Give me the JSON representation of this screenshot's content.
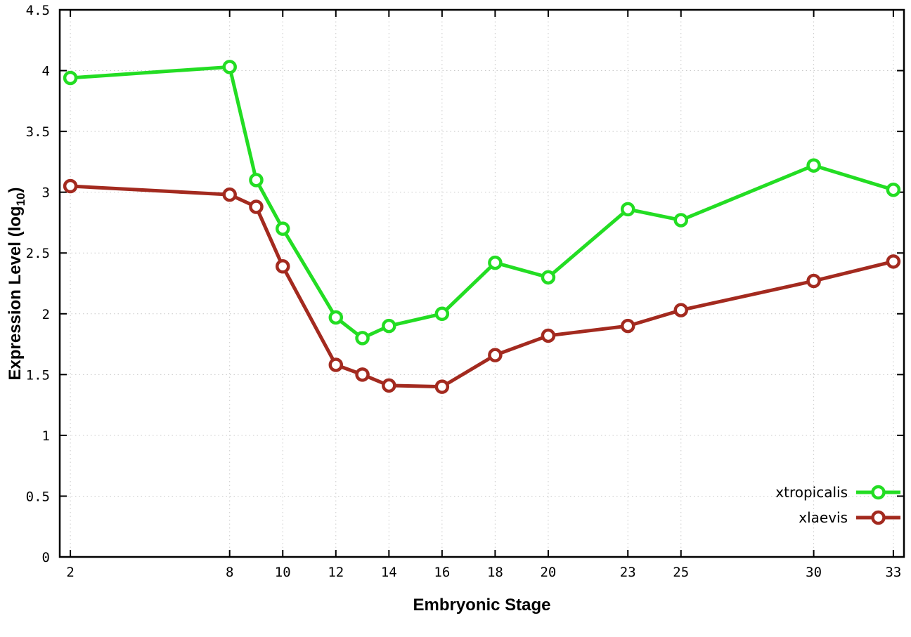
{
  "figure": {
    "background": "#ffffff",
    "border_color": "#000000",
    "grid_color": "#c9c9c9"
  },
  "chart_data": {
    "type": "line",
    "title": "",
    "xlabel": "Embryonic Stage",
    "ylabel": "Expression Level (log10)",
    "ylabel_parts": {
      "pre": "Expression Level (log",
      "sub": "10",
      "post": ")"
    },
    "xlim": [
      1.6,
      33.4
    ],
    "ylim": [
      0,
      4.5
    ],
    "grid": true,
    "legend_position": "bottom-right",
    "x_ticks": [
      2,
      8,
      10,
      12,
      14,
      16,
      18,
      20,
      23,
      25,
      30,
      33
    ],
    "x_tick_labels": [
      "2",
      "8",
      "10",
      "12",
      "14",
      "16",
      "18",
      "20",
      "23",
      "25",
      "30",
      "33"
    ],
    "y_ticks": [
      0,
      0.5,
      1,
      1.5,
      2,
      2.5,
      3,
      3.5,
      4,
      4.5
    ],
    "y_tick_labels": [
      "0",
      "0.5",
      "1",
      "1.5",
      "2",
      "2.5",
      "3",
      "3.5",
      "4",
      "4.5"
    ],
    "x": [
      2,
      8,
      9,
      10,
      12,
      13,
      14,
      16,
      18,
      20,
      23,
      25,
      30,
      33
    ],
    "series": [
      {
        "name": "xtropicalis",
        "color": "#23dd23",
        "values": [
          3.94,
          4.03,
          3.1,
          2.7,
          1.97,
          1.8,
          1.9,
          2.0,
          2.42,
          2.3,
          2.86,
          2.77,
          3.22,
          3.02
        ]
      },
      {
        "name": "xlaevis",
        "color": "#a32a1f",
        "values": [
          3.05,
          2.98,
          2.88,
          2.39,
          1.58,
          1.5,
          1.41,
          1.4,
          1.66,
          1.82,
          1.9,
          2.03,
          2.27,
          2.43
        ]
      }
    ],
    "marker": "open-circle"
  }
}
